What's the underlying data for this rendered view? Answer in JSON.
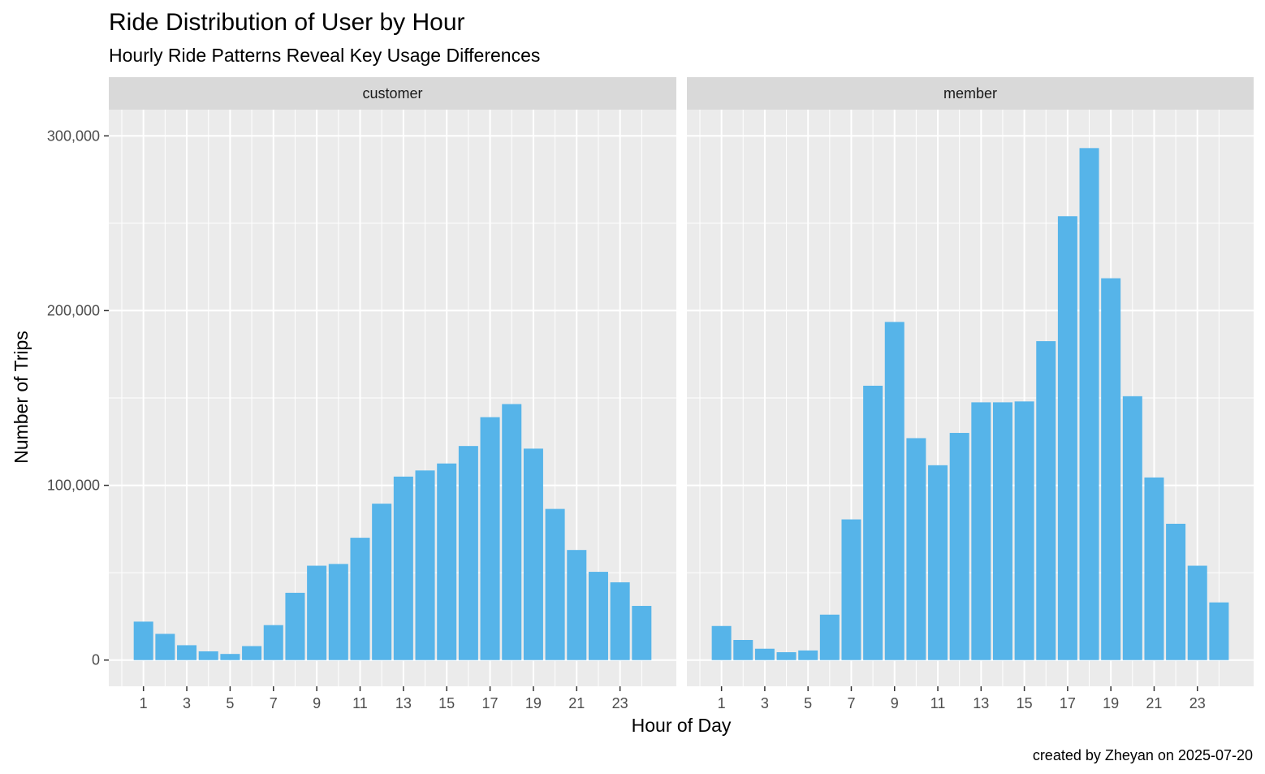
{
  "chart_data": {
    "type": "bar",
    "title": "Ride Distribution of User by Hour",
    "subtitle": "Hourly Ride Patterns Reveal Key Usage Differences",
    "xlabel": "Hour of Day",
    "ylabel": "Number of Trips",
    "caption": "created by Zheyan on 2025-07-20",
    "x_ticks": [
      "1",
      "3",
      "5",
      "7",
      "9",
      "11",
      "13",
      "15",
      "17",
      "19",
      "21",
      "23"
    ],
    "y_ticks": [
      "0",
      "100,000",
      "200,000",
      "300,000"
    ],
    "y_tick_values": [
      0,
      100000,
      200000,
      300000
    ],
    "xlim": [
      -0.6,
      25.6
    ],
    "ylim": [
      -15000,
      315000
    ],
    "bar_color": "#56B4E9",
    "panel_background": "#EBEBEB",
    "strip_background": "#D9D9D9",
    "grid": true,
    "legend": "none",
    "categories": [
      1,
      2,
      3,
      4,
      5,
      6,
      7,
      8,
      9,
      10,
      11,
      12,
      13,
      14,
      15,
      16,
      17,
      18,
      19,
      20,
      21,
      22,
      23,
      24
    ],
    "facets": [
      {
        "name": "customer",
        "values": [
          22000,
          15000,
          8500,
          5000,
          3500,
          8000,
          20000,
          38500,
          54000,
          55000,
          70000,
          89500,
          105000,
          108500,
          112500,
          122500,
          139000,
          146500,
          121000,
          86500,
          63000,
          50500,
          44500,
          31000
        ]
      },
      {
        "name": "member",
        "values": [
          19500,
          11500,
          6500,
          4500,
          5500,
          26000,
          80500,
          157000,
          193500,
          127000,
          111500,
          130000,
          147500,
          147500,
          148000,
          182500,
          254000,
          293000,
          218500,
          151000,
          104500,
          78000,
          54000,
          33000
        ]
      }
    ]
  }
}
